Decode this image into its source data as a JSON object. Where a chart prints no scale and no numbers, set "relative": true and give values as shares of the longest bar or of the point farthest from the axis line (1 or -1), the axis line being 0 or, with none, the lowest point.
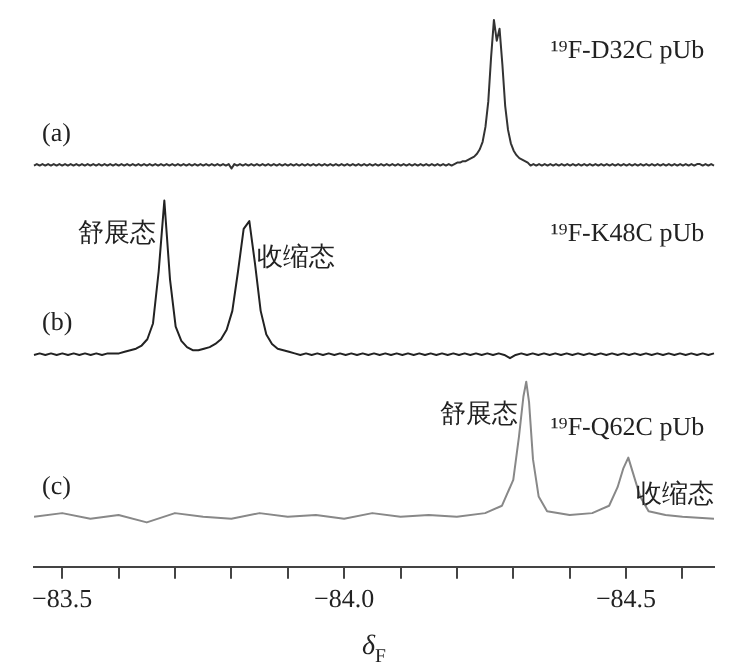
{
  "chart_data": [
    {
      "type": "line",
      "relative": true,
      "tick_labels": false,
      "color": "#333333",
      "categories": [
        null,
        null,
        null,
        null,
        null,
        null,
        null,
        null,
        null,
        null,
        null,
        null,
        null,
        null,
        null,
        null,
        null,
        null,
        null,
        null,
        null,
        null,
        null,
        null,
        null,
        null,
        null,
        null,
        null,
        null,
        null,
        null,
        null,
        null,
        null,
        null,
        null,
        null,
        null,
        null,
        null,
        null,
        null,
        null,
        null,
        null,
        null,
        null,
        null,
        null,
        null,
        null,
        null,
        null,
        null,
        null,
        null,
        null,
        null,
        null,
        null,
        null,
        null,
        null,
        null,
        null,
        null,
        null,
        null,
        null,
        null,
        null,
        null,
        null,
        null,
        null,
        null,
        null,
        null,
        null,
        null,
        null,
        null,
        null,
        null,
        null,
        null,
        null,
        null,
        null,
        null,
        null,
        null,
        null,
        null,
        null,
        null,
        null,
        null,
        null,
        null,
        null,
        null,
        null,
        null,
        null,
        null,
        null,
        null,
        null,
        null,
        null,
        null,
        null,
        null,
        null,
        null,
        null,
        null,
        null,
        null,
        null,
        null,
        null,
        null,
        null,
        null,
        null,
        null,
        null,
        null,
        null,
        null,
        null,
        null,
        null,
        null,
        null,
        null,
        null,
        null,
        null,
        null,
        null,
        null,
        null,
        null,
        null,
        null,
        null,
        null,
        null,
        null,
        null,
        null,
        null,
        null,
        null,
        null,
        null,
        null,
        null,
        null,
        null,
        null,
        null,
        null,
        null,
        null,
        null,
        null,
        null,
        null,
        null,
        null,
        null,
        null,
        null,
        null,
        null,
        null,
        null,
        null,
        null,
        null,
        null,
        null,
        null,
        null,
        null,
        null,
        null,
        null,
        null,
        null,
        null,
        null,
        null,
        null,
        null,
        null,
        null,
        null,
        null,
        null,
        null,
        null,
        null,
        null,
        null,
        null,
        null,
        null,
        null,
        null,
        null,
        null,
        null,
        null,
        null,
        null,
        null,
        null,
        null,
        null,
        null,
        null,
        null,
        null,
        null,
        null,
        null,
        null,
        null,
        null,
        null,
        null,
        null,
        null,
        null,
        null,
        null
      ],
      "values": [
        0.02,
        0.03,
        0.02,
        0.03,
        0.02,
        0.03,
        0.02,
        0.03,
        0.02,
        0.03,
        0.02,
        0.03,
        0.02,
        0.03,
        0.02,
        0.03,
        0.02,
        0.03,
        0.02,
        0.03,
        0.02,
        0.03,
        0.02,
        0.03,
        0.02,
        0.03,
        0.02,
        0.03,
        0.02,
        0.03,
        0.02,
        0.03,
        0.02,
        0.03,
        0.02,
        0.03,
        0.02,
        0.03,
        0.02,
        0.03,
        0.02,
        0.03,
        0.02,
        0.03,
        0.02,
        0.03,
        0.02,
        0.03,
        0.02,
        0.03,
        0.02,
        0.03,
        0.02,
        0.03,
        0.02,
        0.03,
        0.02,
        0.03,
        0.02,
        0.03,
        0.02,
        0.03,
        0.02,
        0.03,
        0.02,
        0.03,
        0.02,
        0.03,
        0.02,
        0.03,
        0.0,
        0.03,
        0.02,
        0.03,
        0.02,
        0.03,
        0.02,
        0.03,
        0.02,
        0.03,
        0.02,
        0.03,
        0.02,
        0.03,
        0.02,
        0.03,
        0.02,
        0.03,
        0.02,
        0.03,
        0.02,
        0.03,
        0.02,
        0.03,
        0.02,
        0.03,
        0.02,
        0.03,
        0.02,
        0.03,
        0.02,
        0.03,
        0.02,
        0.03,
        0.02,
        0.03,
        0.02,
        0.03,
        0.02,
        0.03,
        0.02,
        0.03,
        0.02,
        0.03,
        0.02,
        0.03,
        0.02,
        0.03,
        0.02,
        0.03,
        0.02,
        0.03,
        0.02,
        0.03,
        0.02,
        0.03,
        0.02,
        0.03,
        0.02,
        0.03,
        0.02,
        0.03,
        0.02,
        0.03,
        0.02,
        0.03,
        0.02,
        0.03,
        0.02,
        0.03,
        0.02,
        0.03,
        0.02,
        0.03,
        0.02,
        0.03,
        0.02,
        0.03,
        0.02,
        0.03,
        0.04,
        0.04,
        0.05,
        0.05,
        0.06,
        0.07,
        0.08,
        0.1,
        0.13,
        0.18,
        0.28,
        0.45,
        0.75,
        1.0,
        0.86,
        0.94,
        0.7,
        0.42,
        0.26,
        0.17,
        0.12,
        0.09,
        0.07,
        0.06,
        0.05,
        0.04,
        0.02,
        0.03,
        0.02,
        0.03,
        0.02,
        0.03,
        0.02,
        0.03,
        0.02,
        0.03,
        0.02,
        0.03,
        0.02,
        0.03,
        0.02,
        0.03,
        0.02,
        0.03,
        0.02,
        0.03,
        0.02,
        0.03,
        0.02,
        0.03,
        0.02,
        0.03,
        0.02,
        0.03,
        0.02,
        0.03,
        0.02,
        0.03,
        0.02,
        0.03,
        0.02,
        0.03,
        0.02,
        0.03,
        0.02,
        0.03,
        0.02,
        0.03,
        0.02,
        0.03,
        0.02,
        0.03,
        0.02,
        0.03,
        0.02,
        0.03,
        0.02,
        0.03,
        0.02,
        0.03,
        0.02,
        0.03,
        0.02,
        0.03,
        0.02,
        0.03,
        0.03,
        0.02,
        0.03,
        0.02,
        0.03,
        0.02
      ],
      "annotations": [
        "(a)",
        "¹⁹F-D32C pUb"
      ]
    },
    {
      "type": "line",
      "relative": true,
      "tick_labels": false,
      "color": "#222222",
      "categories": [
        null,
        null,
        null,
        null,
        null,
        null,
        null,
        null,
        null,
        null,
        null,
        null,
        null,
        null,
        null,
        null,
        null,
        null,
        null,
        null,
        null,
        null,
        null,
        null,
        null,
        null,
        null,
        null,
        null,
        null,
        null,
        null,
        null,
        null,
        null,
        null,
        null,
        null,
        null,
        null,
        null,
        null,
        null,
        null,
        null,
        null,
        null,
        null,
        null,
        null,
        null,
        null,
        null,
        null,
        null,
        null,
        null,
        null,
        null,
        null,
        null,
        null,
        null,
        null,
        null,
        null,
        null,
        null,
        null,
        null,
        null,
        null,
        null,
        null,
        null,
        null,
        null,
        null,
        null,
        null,
        null,
        null,
        null,
        null,
        null,
        null,
        null,
        null,
        null,
        null,
        null,
        null,
        null,
        null,
        null,
        null,
        null,
        null,
        null,
        null,
        null,
        null,
        null,
        null,
        null,
        null,
        null,
        null,
        null,
        null,
        null,
        null,
        null,
        null,
        null,
        null,
        null,
        null,
        null,
        null,
        null
      ],
      "values": [
        0.02,
        0.03,
        0.02,
        0.03,
        0.02,
        0.03,
        0.02,
        0.03,
        0.02,
        0.03,
        0.02,
        0.03,
        0.02,
        0.03,
        0.03,
        0.03,
        0.04,
        0.05,
        0.06,
        0.08,
        0.12,
        0.22,
        0.55,
        1.0,
        0.5,
        0.2,
        0.11,
        0.07,
        0.05,
        0.05,
        0.06,
        0.07,
        0.09,
        0.12,
        0.18,
        0.3,
        0.55,
        0.82,
        0.87,
        0.6,
        0.3,
        0.15,
        0.09,
        0.06,
        0.05,
        0.04,
        0.03,
        0.02,
        0.03,
        0.02,
        0.03,
        0.02,
        0.03,
        0.02,
        0.03,
        0.02,
        0.03,
        0.02,
        0.03,
        0.02,
        0.03,
        0.02,
        0.03,
        0.02,
        0.03,
        0.02,
        0.03,
        0.02,
        0.03,
        0.02,
        0.03,
        0.02,
        0.03,
        0.02,
        0.03,
        0.02,
        0.03,
        0.02,
        0.03,
        0.02,
        0.03,
        0.02,
        0.03,
        0.02,
        0.0,
        0.02,
        0.03,
        0.02,
        0.03,
        0.02,
        0.03,
        0.02,
        0.03,
        0.02,
        0.03,
        0.02,
        0.03,
        0.02,
        0.03,
        0.02,
        0.03,
        0.02,
        0.03,
        0.02,
        0.03,
        0.02,
        0.03,
        0.02,
        0.03,
        0.02,
        0.03,
        0.02,
        0.03,
        0.02,
        0.03,
        0.02,
        0.03,
        0.02,
        0.03,
        0.02,
        0.03
      ],
      "annotations": [
        "(b)",
        "¹⁹F-K48C pUb",
        "舒展态",
        "收缩态"
      ]
    },
    {
      "type": "line",
      "relative": true,
      "color": "#888888",
      "xlim": [
        -83.45,
        -84.656
      ],
      "xticks": [
        {
          "value": -83.5,
          "label": "−83.5"
        },
        {
          "value": -83.6,
          "label": null
        },
        {
          "value": -83.7,
          "label": null
        },
        {
          "value": -83.8,
          "label": null
        },
        {
          "value": -83.9,
          "label": null
        },
        {
          "value": -84.0,
          "label": "−84.0"
        },
        {
          "value": -84.1,
          "label": null
        },
        {
          "value": -84.2,
          "label": null
        },
        {
          "value": -84.3,
          "label": null
        },
        {
          "value": -84.4,
          "label": null
        },
        {
          "value": -84.5,
          "label": "−84.5"
        },
        {
          "value": -84.6,
          "label": null
        }
      ],
      "xlabel": "δ$_{F}$",
      "x": [
        -83.45,
        -83.5,
        -83.55,
        -83.6,
        -83.65,
        -83.7,
        -83.75,
        -83.8,
        -83.85,
        -83.9,
        -83.95,
        -84.0,
        -84.05,
        -84.1,
        -84.15,
        -84.2,
        -84.25,
        -84.28,
        -84.3,
        -84.31,
        -84.318,
        -84.323,
        -84.328,
        -84.335,
        -84.345,
        -84.36,
        -84.4,
        -84.44,
        -84.47,
        -84.485,
        -84.495,
        -84.504,
        -84.512,
        -84.525,
        -84.54,
        -84.57,
        -84.6,
        -84.656
      ],
      "values": [
        0.27,
        0.29,
        0.26,
        0.28,
        0.24,
        0.29,
        0.27,
        0.26,
        0.29,
        0.27,
        0.28,
        0.26,
        0.29,
        0.27,
        0.28,
        0.27,
        0.29,
        0.33,
        0.47,
        0.7,
        0.92,
        1.0,
        0.89,
        0.58,
        0.38,
        0.3,
        0.28,
        0.29,
        0.33,
        0.43,
        0.53,
        0.59,
        0.51,
        0.38,
        0.3,
        0.28,
        0.27,
        0.26
      ],
      "annotations": [
        "(c)",
        "¹⁹F-Q62C pUb",
        {
          "text": "舒展态",
          "x": -84.323,
          "y": 1.0
        },
        {
          "text": "收缩态",
          "x": -84.504,
          "y": 0.59
        }
      ]
    }
  ]
}
